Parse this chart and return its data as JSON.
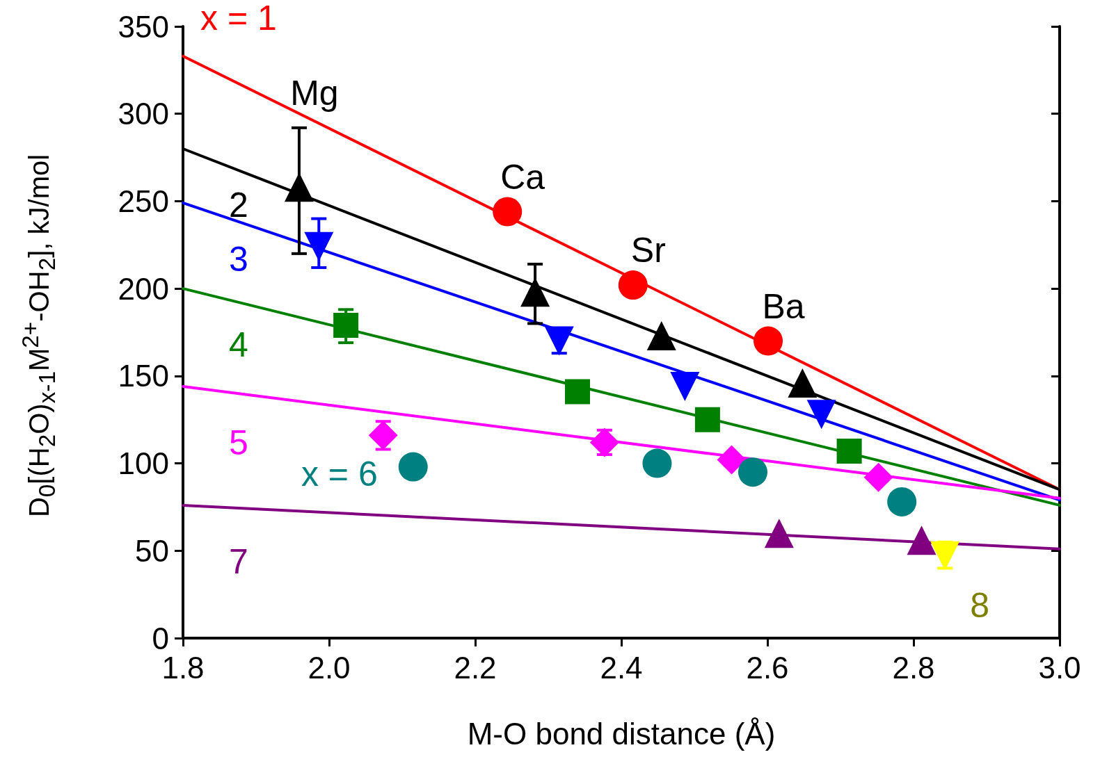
{
  "chart_data": {
    "type": "scatter",
    "xlabel": "M-O bond distance (Å)",
    "ylabel": "D$_{0}$[(H$_{2}$O)$_{x-1}$M$^{2+}$-OH$_{2}$], kJ/mol",
    "xlim": [
      1.8,
      3.0
    ],
    "xticks": [
      1.8,
      {
        "value": 2,
        "label": "2.0"
      },
      2.2,
      2.4,
      2.6,
      2.8,
      {
        "value": 3,
        "label": "3.0"
      }
    ],
    "ylim": [
      0,
      350
    ],
    "yticks": [
      0,
      50,
      100,
      150,
      200,
      250,
      300,
      350
    ],
    "grid": false,
    "annotations": [
      {
        "text": "Mg",
        "x": 1.959,
        "y": 292
      },
      {
        "text": "Ca",
        "x": 2.244,
        "y": 244
      },
      {
        "text": "Sr",
        "x": 2.416,
        "y": 202
      },
      {
        "text": "Ba",
        "x": 2.601,
        "y": 170
      }
    ],
    "series": [
      {
        "type": "line",
        "name": "x = 1",
        "color": "#ff0000",
        "x": [
          1.8,
          3.0
        ],
        "values": [
          333,
          85
        ],
        "line_style": "solid"
      },
      {
        "type": "line",
        "name": "2",
        "color": "#000000",
        "x": [
          1.8,
          3.0
        ],
        "values": [
          280,
          85
        ],
        "line_style": "solid"
      },
      {
        "type": "line",
        "name": "3",
        "color": "#0000ff",
        "x": [
          1.8,
          3.0
        ],
        "values": [
          249,
          79
        ],
        "line_style": "solid"
      },
      {
        "type": "line",
        "name": "4",
        "color": "#008000",
        "x": [
          1.8,
          3.0
        ],
        "values": [
          200,
          76
        ],
        "line_style": "solid"
      },
      {
        "type": "line",
        "name": "5",
        "color": "#ff00ff",
        "x": [
          1.8,
          3.0
        ],
        "values": [
          144,
          80
        ],
        "line_style": "solid"
      },
      {
        "type": "line",
        "name": "7",
        "color": "#800080",
        "x": [
          1.8,
          3.0
        ],
        "values": [
          76,
          51
        ],
        "line_style": "solid"
      },
      {
        "color": "#ff0000",
        "marker": "circle",
        "x": [
          2.244,
          2.416,
          2.601
        ],
        "values": [
          244,
          202,
          170
        ]
      },
      {
        "color": "#000000",
        "marker": "triangle",
        "x": [
          1.959,
          2.282,
          2.455,
          2.648
        ],
        "values": [
          258,
          198,
          173,
          146
        ],
        "errors": [
          [
            220,
            292
          ],
          [
            180,
            214
          ],
          null,
          null
        ]
      },
      {
        "color": "#0000ff",
        "marker": "triangle-down",
        "x": [
          1.986,
          2.315,
          2.487,
          2.674
        ],
        "values": [
          224,
          170,
          144,
          128
        ],
        "errors": [
          [
            212,
            240
          ],
          [
            163,
            177
          ],
          null,
          null
        ]
      },
      {
        "color": "#008000",
        "marker": "square",
        "x": [
          2.023,
          2.34,
          2.518,
          2.712
        ],
        "values": [
          179,
          141,
          125,
          107
        ],
        "errors": [
          [
            169,
            188
          ],
          null,
          null,
          null
        ]
      },
      {
        "color": "#ff00ff",
        "marker": "diamond",
        "x": [
          2.074,
          2.377,
          2.551,
          2.752
        ],
        "values": [
          116,
          112,
          102,
          92
        ],
        "errors": [
          [
            108,
            124
          ],
          [
            105,
            119
          ],
          null,
          null
        ]
      },
      {
        "name": "x = 6",
        "color": "#008080",
        "marker": "circle",
        "x": [
          2.115,
          2.449,
          2.58,
          2.784
        ],
        "values": [
          98,
          100,
          95,
          78
        ]
      },
      {
        "color": "#800080",
        "marker": "triangle",
        "x": [
          2.616,
          2.811
        ],
        "values": [
          60,
          56
        ]
      },
      {
        "name": "8",
        "color": "#ffff00",
        "marker": "triangle-down",
        "x": [
          2.843
        ],
        "values": [
          47
        ],
        "errors": [
          [
            40,
            55
          ]
        ]
      }
    ]
  }
}
